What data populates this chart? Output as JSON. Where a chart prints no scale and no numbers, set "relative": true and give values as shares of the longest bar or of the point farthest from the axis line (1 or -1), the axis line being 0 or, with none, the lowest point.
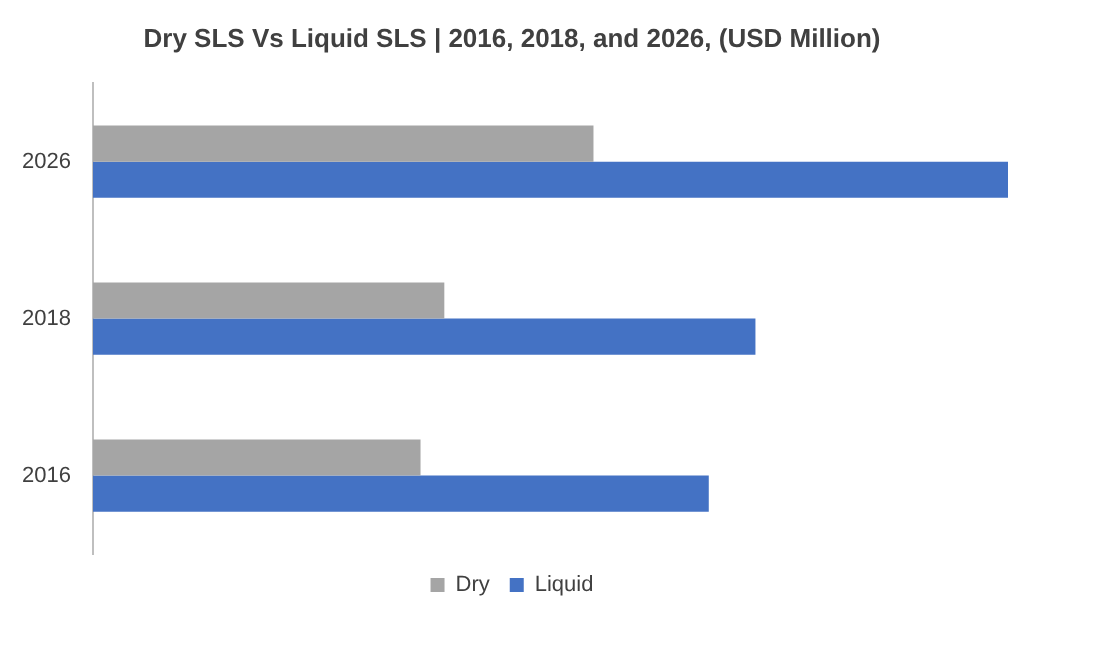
{
  "chart_data": {
    "type": "bar",
    "orientation": "horizontal",
    "relative": true,
    "title": "Dry SLS Vs Liquid SLS | 2016, 2018, and 2026, (USD Million)",
    "categories": [
      "2026",
      "2018",
      "2016"
    ],
    "series": [
      {
        "name": "Dry",
        "color": "#a5a5a5",
        "values": [
          0.547,
          0.384,
          0.358
        ]
      },
      {
        "name": "Liquid",
        "color": "#4472c4",
        "values": [
          1,
          0.724,
          0.673
        ]
      }
    ],
    "legend": "bottom"
  }
}
